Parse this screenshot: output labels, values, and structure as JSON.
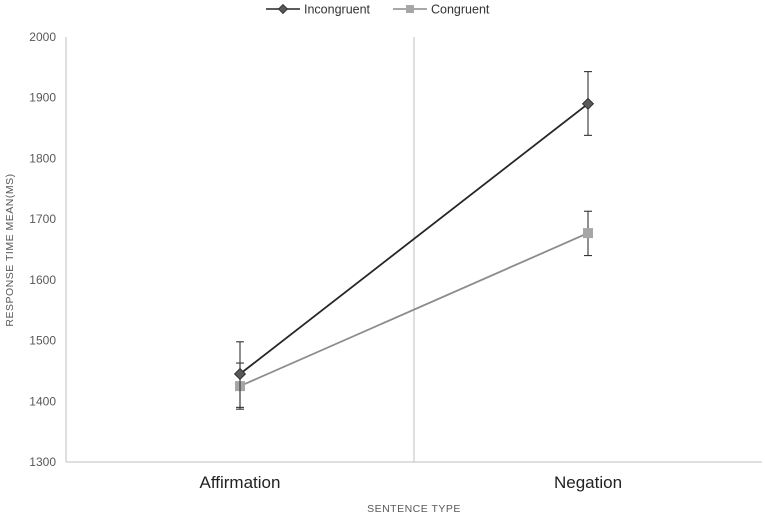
{
  "chart_data": {
    "type": "line",
    "categories": [
      "Affirmation",
      "Negation"
    ],
    "series": [
      {
        "name": "Incongruent",
        "values": [
          1445,
          1890
        ],
        "error_low": [
          1390,
          1838
        ],
        "error_high": [
          1498,
          1943
        ],
        "color": "#262626",
        "marker": "diamond"
      },
      {
        "name": "Congruent",
        "values": [
          1425,
          1677
        ],
        "error_low": [
          1387,
          1640
        ],
        "error_high": [
          1463,
          1713
        ],
        "color": "#8c8c8c",
        "marker": "square"
      }
    ],
    "title": "",
    "xlabel": "SENTENCE TYPE",
    "ylabel": "RESPONSE TIME MEAN(MS)",
    "ylim": [
      1300,
      2000
    ],
    "yticks": [
      1300,
      1400,
      1500,
      1600,
      1700,
      1800,
      1900,
      2000
    ],
    "grid": false,
    "legend": "top-center"
  }
}
